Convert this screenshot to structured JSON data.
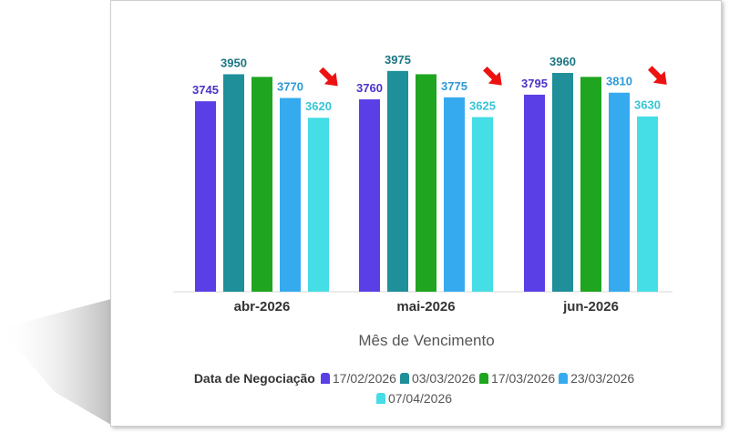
{
  "chart_data": {
    "type": "bar",
    "categories": [
      "abr-2026",
      "mai-2026",
      "jun-2026"
    ],
    "series": [
      {
        "name": "17/02/2026",
        "color": "#5b3fe6",
        "values": [
          3745,
          3760,
          3795
        ],
        "labels": [
          "3745",
          "3760",
          "3795"
        ]
      },
      {
        "name": "03/03/2026",
        "color": "#1f8f9a",
        "values": [
          3950,
          3975,
          3960
        ],
        "labels": [
          "3950",
          "3975",
          "3960"
        ]
      },
      {
        "name": "17/03/2026",
        "color": "#1fa51f",
        "values": [
          3930,
          3950,
          3930
        ],
        "labels": [
          "",
          "",
          ""
        ]
      },
      {
        "name": "23/03/2026",
        "color": "#36aaef",
        "values": [
          3770,
          3775,
          3810
        ],
        "labels": [
          "3770",
          "3775",
          "3810"
        ]
      },
      {
        "name": "07/04/2026",
        "color": "#45dde6",
        "values": [
          3620,
          3625,
          3630
        ],
        "labels": [
          "3620",
          "3625",
          "3630"
        ]
      }
    ],
    "label_colors": [
      "#4a33c8",
      "#1b7582",
      "#1fa51f",
      "#2d9ad6",
      "#36c4d6"
    ],
    "xlabel": "Mês de Vencimento",
    "ylabel": "",
    "ylim": [
      2300,
      4050
    ],
    "legend_title": "Data de Negociação",
    "highlight_series": "07/04/2026",
    "arrow_color": "#ee1111"
  }
}
